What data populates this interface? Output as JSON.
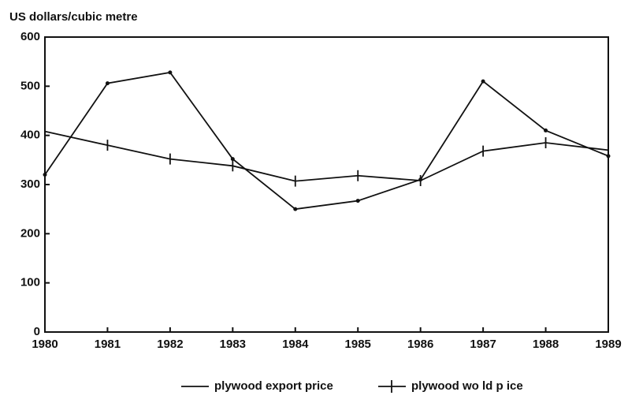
{
  "chart_data": {
    "type": "line",
    "y_axis_label": "US dollars/cubic metre",
    "x": [
      1980,
      1981,
      1982,
      1983,
      1984,
      1985,
      1986,
      1987,
      1988,
      1989
    ],
    "series": [
      {
        "name": "plywood export price",
        "color": "#111111",
        "marker": "dot",
        "values": [
          320,
          506,
          528,
          352,
          250,
          267,
          310,
          510,
          410,
          358
        ]
      },
      {
        "name": "plywood wo ld p ice",
        "color": "#111111",
        "marker": "cross",
        "values": [
          408,
          380,
          352,
          338,
          307,
          318,
          308,
          368,
          385,
          370
        ]
      }
    ],
    "xlim": [
      1980,
      1989
    ],
    "xticks": [
      1980,
      1981,
      1982,
      1983,
      1984,
      1985,
      1986,
      1987,
      1988,
      1989
    ],
    "ylim": [
      0,
      600
    ],
    "yticks": [
      0,
      100,
      200,
      300,
      400,
      500,
      600
    ],
    "legend": "bottom"
  }
}
